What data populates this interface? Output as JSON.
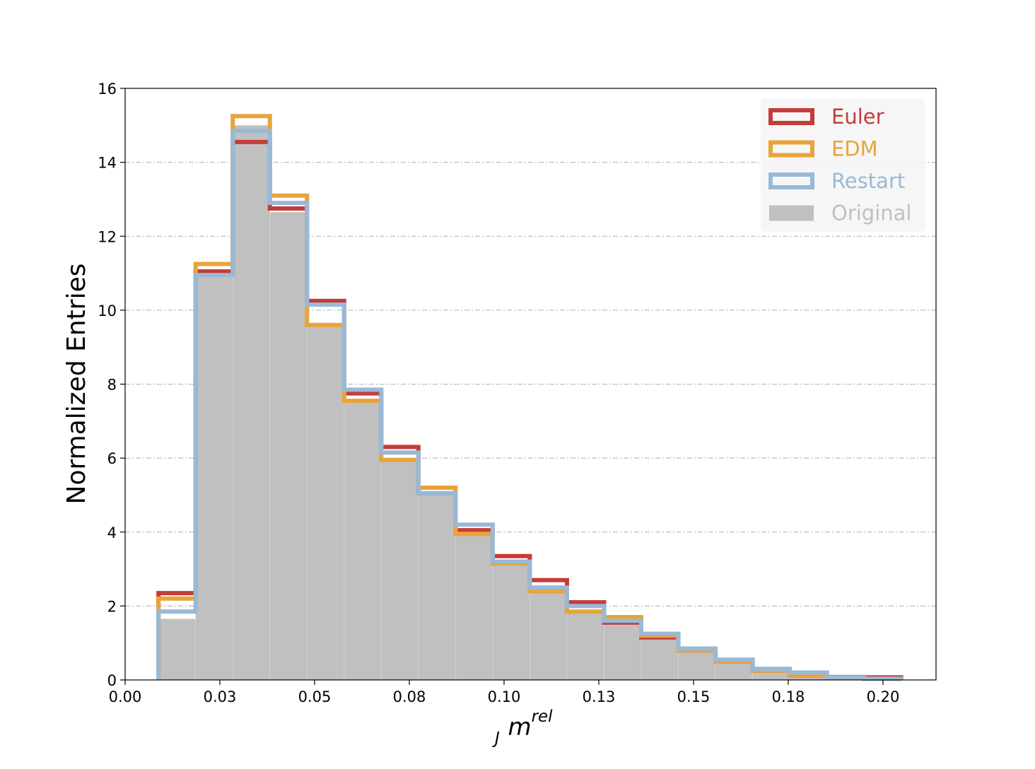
{
  "chart_data": {
    "type": "histogram",
    "xlabel": "m",
    "xlabel_sub": "J",
    "xlabel_sup": "rel",
    "ylabel": "Normalized Entries",
    "xlim": [
      0.0,
      0.214
    ],
    "ylim": [
      0,
      16
    ],
    "x_ticks": [
      0.0,
      0.025,
      0.05,
      0.075,
      0.1,
      0.125,
      0.15,
      0.175,
      0.2
    ],
    "x_tick_labels": [
      "0.00",
      "0.03",
      "0.05",
      "0.08",
      "0.10",
      "0.13",
      "0.15",
      "0.18",
      "0.20"
    ],
    "y_ticks": [
      0,
      2,
      4,
      6,
      8,
      10,
      12,
      14,
      16
    ],
    "y_tick_labels": [
      "0",
      "2",
      "4",
      "6",
      "8",
      "10",
      "12",
      "14",
      "16"
    ],
    "grid": "horizontal dash-dot",
    "legend_position": "top-right",
    "bin_edges": [
      0.0088,
      0.0186,
      0.0284,
      0.0382,
      0.048,
      0.0578,
      0.0676,
      0.0774,
      0.0872,
      0.097,
      0.1068,
      0.1166,
      0.1264,
      0.1362,
      0.146,
      0.1558,
      0.1656,
      0.1754,
      0.1852,
      0.195,
      0.2048
    ],
    "series": [
      {
        "name": "Original",
        "style": "filled",
        "color": "#c0c0c0",
        "values": [
          1.65,
          10.95,
          15.0,
          12.65,
          9.65,
          7.55,
          5.95,
          5.05,
          4.0,
          3.15,
          2.4,
          1.85,
          1.5,
          1.1,
          0.8,
          0.5,
          0.25,
          0.1,
          0.05,
          0.03
        ]
      },
      {
        "name": "Euler",
        "style": "step",
        "color": "#c43c39",
        "values": [
          2.35,
          11.05,
          14.55,
          12.75,
          10.25,
          7.75,
          6.3,
          5.05,
          4.05,
          3.35,
          2.7,
          2.1,
          1.55,
          1.15,
          0.8,
          0.5,
          0.25,
          0.12,
          0.08,
          0.07
        ]
      },
      {
        "name": "EDM",
        "style": "step",
        "color": "#e8a43a",
        "values": [
          2.2,
          11.25,
          15.25,
          13.1,
          9.6,
          7.55,
          5.95,
          5.2,
          3.95,
          3.15,
          2.4,
          1.85,
          1.7,
          1.2,
          0.8,
          0.5,
          0.25,
          0.12,
          0.05,
          0.03
        ]
      },
      {
        "name": "Restart",
        "style": "step",
        "color": "#99b9d7",
        "values": [
          1.85,
          10.95,
          14.85,
          12.9,
          10.15,
          7.85,
          6.15,
          5.05,
          4.2,
          3.2,
          2.5,
          2.0,
          1.6,
          1.25,
          0.85,
          0.55,
          0.3,
          0.2,
          0.07,
          0.03
        ]
      }
    ]
  }
}
